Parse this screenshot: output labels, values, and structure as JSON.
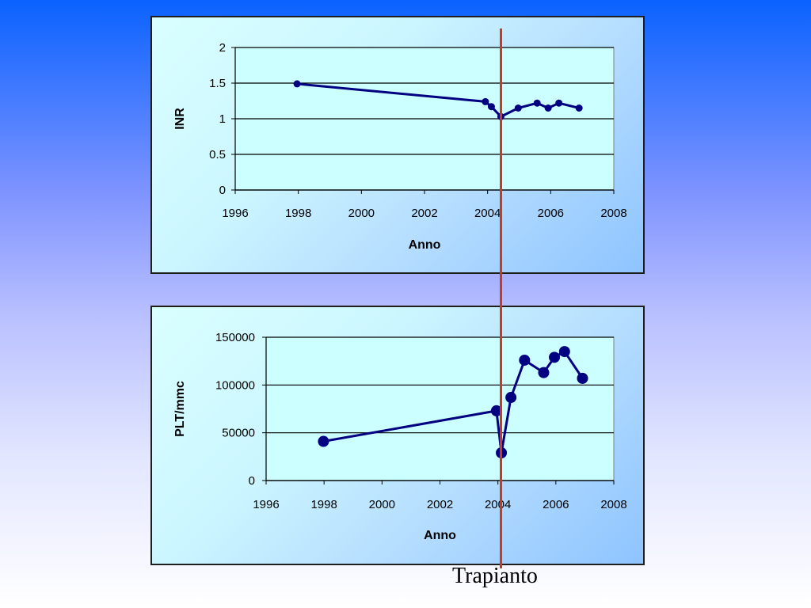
{
  "chart_data": [
    {
      "type": "line",
      "xlabel": "Anno",
      "ylabel": "INR",
      "xlim": [
        1996,
        2008
      ],
      "ylim": [
        0,
        2
      ],
      "x_ticks": [
        "1996",
        "1998",
        "2000",
        "2002",
        "2004",
        "2006",
        "2008"
      ],
      "y_ticks": [
        "0",
        "0.5",
        "1",
        "1.5",
        "2"
      ],
      "grid": "horizontal",
      "legend": "none",
      "series": [
        {
          "x": [
            1997.96,
            2003.93,
            2004.12,
            2004.42,
            2004.97,
            2005.57,
            2005.92,
            2006.26,
            2006.9
          ],
          "y": [
            1.49,
            1.24,
            1.17,
            1.03,
            1.15,
            1.22,
            1.15,
            1.22,
            1.15
          ]
        }
      ],
      "color": "#000080"
    },
    {
      "type": "line",
      "xlabel": "Anno",
      "ylabel": "PLT/mmc",
      "xlim": [
        1996,
        2008
      ],
      "ylim": [
        0,
        150000
      ],
      "x_ticks": [
        "1996",
        "1998",
        "2000",
        "2002",
        "2004",
        "2006",
        "2008"
      ],
      "y_ticks": [
        "0",
        "50000",
        "100000",
        "150000"
      ],
      "grid": "horizontal",
      "legend": "none",
      "series": [
        {
          "x": [
            1997.98,
            2003.95,
            2004.12,
            2004.45,
            2004.92,
            2005.58,
            2005.95,
            2006.3,
            2006.92
          ],
          "y": [
            41000,
            73000,
            29000,
            87000,
            126000,
            113000,
            129000,
            135000,
            107000
          ]
        }
      ],
      "color": "#000080"
    }
  ],
  "marker": {
    "label": "Trapianto",
    "color": "#cc3a1e"
  }
}
